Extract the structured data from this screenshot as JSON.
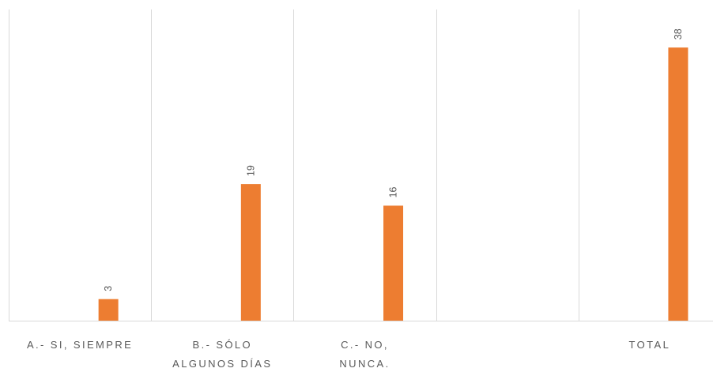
{
  "chart_data": {
    "type": "bar",
    "categories": [
      [
        "A.- SI, SIEMPRE"
      ],
      [
        "B.- SÓLO",
        "ALGUNOS DÍAS"
      ],
      [
        "C.- NO,",
        "NUNCA."
      ],
      [
        ""
      ],
      [
        "TOTAL"
      ]
    ],
    "values": [
      3,
      19,
      16,
      null,
      38
    ],
    "data_labels": [
      "3",
      "19",
      "16",
      "",
      "38"
    ],
    "ylim": [
      0,
      40
    ],
    "bar_color": "#ED7D31",
    "grid_color": "#D9D9D9",
    "grid": "vertical category separators",
    "legend": "none"
  }
}
